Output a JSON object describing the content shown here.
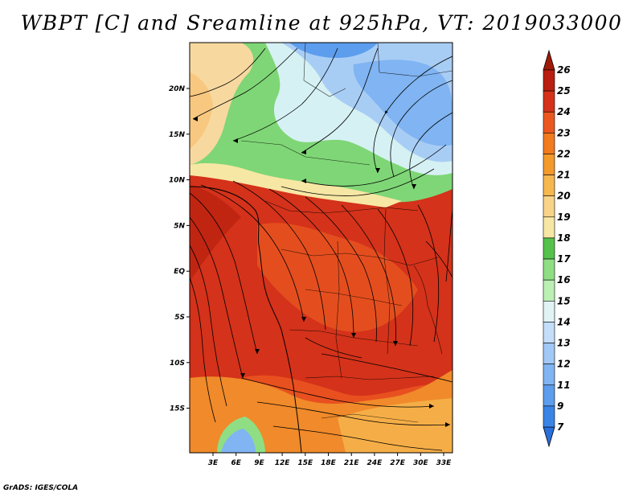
{
  "title": "WBPT [C] and Sreamline at 925hPa, VT: 2019033000",
  "credit": "GrADS: IGES/COLA",
  "map": {
    "variable": "Wet-bulb potential temperature",
    "units": "C",
    "level": "925hPa",
    "valid_time": "2019033000",
    "overlay": "streamlines",
    "lat_ticks": [
      "20N",
      "15N",
      "10N",
      "5N",
      "EQ",
      "5S",
      "10S",
      "15S"
    ],
    "lon_ticks": [
      "3E",
      "6E",
      "9E",
      "12E",
      "15E",
      "18E",
      "21E",
      "24E",
      "27E",
      "30E",
      "33E"
    ]
  },
  "colorbar": {
    "levels": [
      "7",
      "9",
      "11",
      "12",
      "13",
      "14",
      "15",
      "16",
      "17",
      "18",
      "19",
      "20",
      "21",
      "22",
      "23",
      "24",
      "25",
      "26"
    ],
    "colors": [
      "#2a6fdc",
      "#3a84e6",
      "#5d9ded",
      "#80b4f2",
      "#a2c9f6",
      "#c4ddf9",
      "#e2f3f5",
      "#bcefb4",
      "#8fde84",
      "#55c24c",
      "#f7e7a4",
      "#f8d48a",
      "#f6b74f",
      "#f39a2c",
      "#f27a1f",
      "#ea5820",
      "#d4321a",
      "#b81f10",
      "#a01a0a"
    ]
  }
}
